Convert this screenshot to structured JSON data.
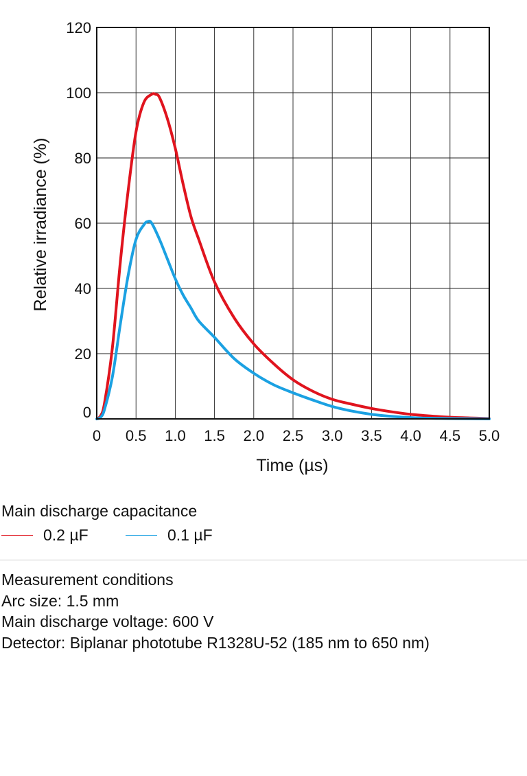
{
  "chart_data": {
    "type": "line",
    "xlabel": "Time (µs)",
    "ylabel": "Relative irradiance (%)",
    "xlim": [
      0,
      5.0
    ],
    "ylim": [
      0,
      120
    ],
    "x_ticks": [
      "0",
      "0.5",
      "1.0",
      "1.5",
      "2.0",
      "2.5",
      "3.0",
      "3.5",
      "4.0",
      "4.5",
      "5.0"
    ],
    "y_ticks": [
      "0",
      "20",
      "40",
      "60",
      "80",
      "100",
      "120"
    ],
    "grid": true,
    "series": [
      {
        "name": "0.2 µF",
        "color": "#e0141e",
        "x": [
          0,
          0.05,
          0.1,
          0.2,
          0.3,
          0.4,
          0.5,
          0.6,
          0.7,
          0.75,
          0.8,
          0.9,
          1.0,
          1.1,
          1.2,
          1.3,
          1.5,
          1.75,
          2.0,
          2.25,
          2.5,
          2.75,
          3.0,
          3.25,
          3.5,
          3.75,
          4.0,
          4.25,
          4.5,
          4.75,
          5.0
        ],
        "values": [
          0,
          1,
          5,
          22,
          48,
          70,
          88,
          97,
          99.5,
          99.5,
          98.5,
          92,
          83,
          72,
          62,
          55,
          42,
          31,
          23,
          17,
          12,
          8.5,
          6,
          4.5,
          3.2,
          2.2,
          1.4,
          0.9,
          0.5,
          0.3,
          0.1
        ]
      },
      {
        "name": "0.1 µF",
        "color": "#1ba1e2",
        "x": [
          0,
          0.05,
          0.1,
          0.2,
          0.3,
          0.4,
          0.5,
          0.6,
          0.65,
          0.7,
          0.8,
          0.9,
          1.0,
          1.1,
          1.2,
          1.3,
          1.5,
          1.75,
          2.0,
          2.25,
          2.5,
          2.75,
          3.0,
          3.25,
          3.5,
          3.75,
          4.0,
          4.25,
          4.5,
          4.75,
          5.0
        ],
        "values": [
          0,
          0.5,
          3,
          13,
          29,
          44,
          55,
          59.5,
          60.5,
          60,
          55,
          49,
          43,
          38,
          34,
          30,
          25,
          18.5,
          14,
          10.5,
          8,
          5.8,
          3.8,
          2.4,
          1.4,
          0.8,
          0.4,
          0.2,
          0.1,
          0.05,
          0
        ]
      }
    ]
  },
  "legend": {
    "title": "Main discharge capacitance",
    "items": [
      {
        "label": "0.2 µF",
        "color": "#e0141e"
      },
      {
        "label": "0.1 µF",
        "color": "#1ba1e2"
      }
    ]
  },
  "conditions": {
    "title": "Measurement conditions",
    "arc_size": "Arc size: 1.5 mm",
    "voltage": "Main discharge voltage: 600 V",
    "detector": "Detector: Biplanar phototube R1328U-52 (185 nm to 650 nm)"
  }
}
